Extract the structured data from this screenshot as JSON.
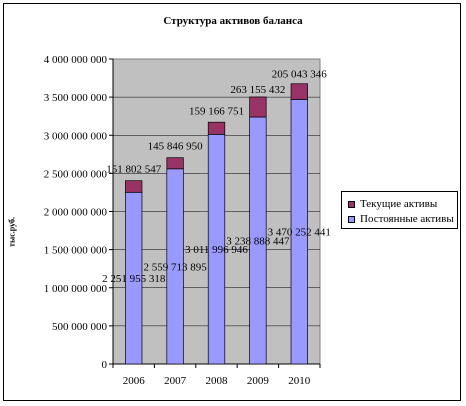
{
  "colors": {
    "plot_bg": "#c0c0c0",
    "current_assets": "#993366",
    "fixed_assets": "#9999ff"
  },
  "chart_data": {
    "type": "bar",
    "stacked": true,
    "title": "Структура активов баланса",
    "xlabel": "",
    "ylabel": "тыс.руб.",
    "categories": [
      "2006",
      "2007",
      "2008",
      "2009",
      "2010"
    ],
    "ylim": [
      0,
      4000000000
    ],
    "yticks": [
      0,
      500000000,
      1000000000,
      1500000000,
      2000000000,
      2500000000,
      3000000000,
      3500000000,
      4000000000
    ],
    "ytick_labels": [
      "0",
      "500 000 000",
      "1 000 000 000",
      "1 500 000 000",
      "2 000 000 000",
      "2 500 000 000",
      "3 000 000 000",
      "3 500 000 000",
      "4 000 000 000"
    ],
    "grid": true,
    "legend_position": "right",
    "series": [
      {
        "name": "Постоянные активы",
        "values": [
          2251955318,
          2559713895,
          3011996946,
          3238888447,
          3470252441
        ],
        "labels": [
          "2 251 955 318",
          "2 559 713 895",
          "3 011 996 946",
          "3 238 888 447",
          "3 470 252 441"
        ]
      },
      {
        "name": "Текущие активы",
        "values": [
          151802547,
          145846950,
          159166751,
          263155432,
          205043346
        ],
        "labels": [
          "151 802 547",
          "145 846 950",
          "159 166 751",
          "263 155 432",
          "205 043 346"
        ]
      }
    ]
  }
}
